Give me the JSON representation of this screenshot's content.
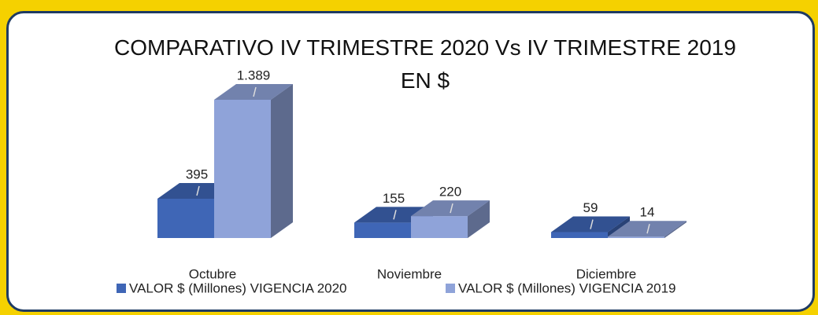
{
  "chart_data": {
    "type": "bar3d",
    "title": "COMPARATIVO IV TRIMESTRE 2020 Vs IV TRIMESTRE 2019 EN $",
    "categories": [
      "Octubre",
      "Noviembre",
      "Diciembre"
    ],
    "series": [
      {
        "name": "VALOR $ (Millones) VIGENCIA 2020",
        "color": "#3f66b6",
        "values": [
          395,
          155,
          59
        ]
      },
      {
        "name": "VALOR $ (Millones) VIGENCIA 2019",
        "color": "#8fa3d9",
        "values": [
          1389,
          220,
          14
        ],
        "value_labels": [
          "1.389",
          "220",
          "14"
        ]
      }
    ]
  }
}
